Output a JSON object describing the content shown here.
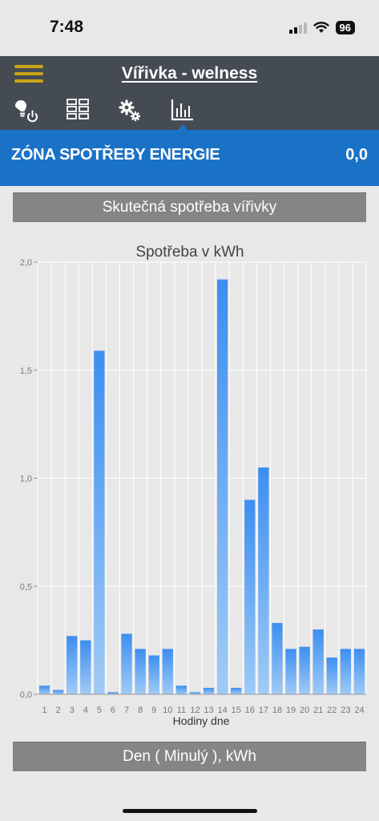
{
  "status": {
    "time": "7:48",
    "battery": "96"
  },
  "header": {
    "title": "Vířivka - welness"
  },
  "tabs": [
    {
      "name": "light-power",
      "icon": "bulb-power-icon"
    },
    {
      "name": "grid",
      "icon": "grid-icon"
    },
    {
      "name": "settings",
      "icon": "gears-icon"
    },
    {
      "name": "consumption",
      "icon": "bar-chart-icon",
      "active": true
    }
  ],
  "energy": {
    "title": "ZÓNA SPOTŘEBY ENERGIE",
    "value": "0,0"
  },
  "section": {
    "title": "Skutečná spotřeba vířivky"
  },
  "footer": {
    "label": "Den ( Minulý ), kWh"
  },
  "colors": {
    "header": "#454b52",
    "accent": "#c9a516",
    "band": "#1a72c7",
    "bar_top": "#3d8ef0",
    "bar_bottom": "#9fcbf7"
  },
  "chart_data": {
    "type": "bar",
    "title": "Spotřeba v kWh",
    "xlabel": "Hodiny dne",
    "ylabel": "",
    "ylim": [
      0,
      2.0
    ],
    "yticks": [
      "0,0",
      "0,5",
      "1,0",
      "1,5",
      "2,0"
    ],
    "categories": [
      "1",
      "2",
      "3",
      "4",
      "5",
      "6",
      "7",
      "8",
      "9",
      "10",
      "11",
      "12",
      "13",
      "14",
      "15",
      "16",
      "17",
      "18",
      "19",
      "20",
      "21",
      "22",
      "23",
      "24"
    ],
    "values": [
      0.04,
      0.02,
      0.27,
      0.25,
      1.59,
      0.01,
      0.28,
      0.21,
      0.18,
      0.21,
      0.04,
      0.01,
      0.03,
      1.92,
      0.03,
      0.9,
      1.05,
      0.33,
      0.21,
      0.22,
      0.3,
      0.17,
      0.21,
      0.21
    ],
    "grid": true,
    "legend": "none"
  }
}
